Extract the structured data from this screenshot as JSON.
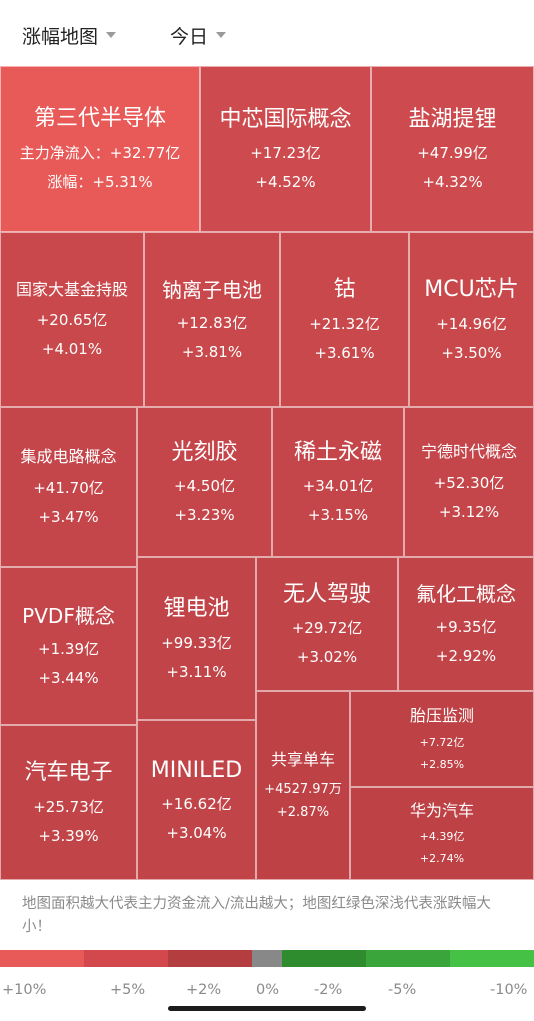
{
  "header": {
    "map_type_label": "涨幅地图",
    "period_label": "今日"
  },
  "colors": {
    "strong_red": "#e85a58",
    "red": "#c8484b",
    "deep_red": "#bd4145",
    "scale": [
      "#e85a58",
      "#d3484c",
      "#b43d40",
      "#888888",
      "#2e8b2e",
      "#3aa53a",
      "#45c145"
    ]
  },
  "tiles": [
    {
      "name": "第三代半导体",
      "inflow_label": "主力净流入：",
      "inflow": "+32.77亿",
      "change_label": "涨幅：",
      "change": "+5.31%"
    },
    {
      "name": "中芯国际概念",
      "inflow": "+17.23亿",
      "change": "+4.52%"
    },
    {
      "name": "盐湖提锂",
      "inflow": "+47.99亿",
      "change": "+4.32%"
    },
    {
      "name": "国家大基金持股",
      "inflow": "+20.65亿",
      "change": "+4.01%"
    },
    {
      "name": "钠离子电池",
      "inflow": "+12.83亿",
      "change": "+3.81%"
    },
    {
      "name": "钴",
      "inflow": "+21.32亿",
      "change": "+3.61%"
    },
    {
      "name": "MCU芯片",
      "inflow": "+14.96亿",
      "change": "+3.50%"
    },
    {
      "name": "集成电路概念",
      "inflow": "+41.70亿",
      "change": "+3.47%"
    },
    {
      "name": "光刻胶",
      "inflow": "+4.50亿",
      "change": "+3.23%"
    },
    {
      "name": "稀土永磁",
      "inflow": "+34.01亿",
      "change": "+3.15%"
    },
    {
      "name": "宁德时代概念",
      "inflow": "+52.30亿",
      "change": "+3.12%"
    },
    {
      "name": "PVDF概念",
      "inflow": "+1.39亿",
      "change": "+3.44%"
    },
    {
      "name": "锂电池",
      "inflow": "+99.33亿",
      "change": "+3.11%"
    },
    {
      "name": "无人驾驶",
      "inflow": "+29.72亿",
      "change": "+3.02%"
    },
    {
      "name": "氟化工概念",
      "inflow": "+9.35亿",
      "change": "+2.92%"
    },
    {
      "name": "汽车电子",
      "inflow": "+25.73亿",
      "change": "+3.39%"
    },
    {
      "name": "MINILED",
      "inflow": "+16.62亿",
      "change": "+3.04%"
    },
    {
      "name": "共享单车",
      "inflow": "+4527.97万",
      "change": "+2.87%"
    },
    {
      "name": "胎压监测",
      "inflow": "+7.72亿",
      "change": "+2.85%"
    },
    {
      "name": "华为汽车",
      "inflow": "+4.39亿",
      "change": "+2.74%"
    }
  ],
  "legend_note": "地图面积越大代表主力资金流入/流出越大；地图红绿色深浅代表涨跌幅大小！",
  "scale_labels": [
    "+10%",
    "+5%",
    "+2%",
    "0%",
    "-2%",
    "-5%",
    "-10%"
  ]
}
